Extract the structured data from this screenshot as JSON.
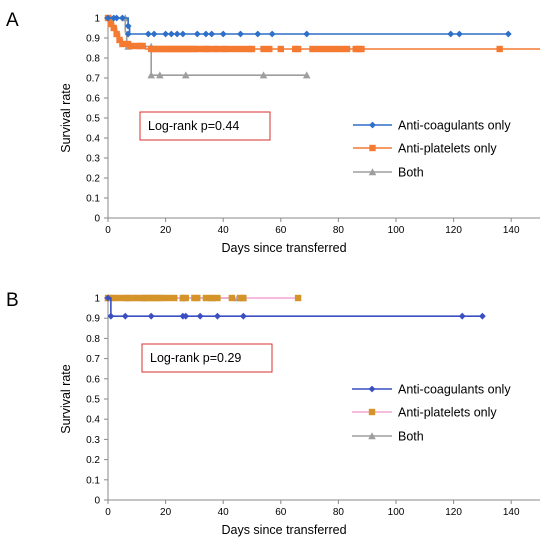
{
  "chart_data": [
    {
      "panel": "A",
      "type": "line",
      "xlabel": "Days since transferred",
      "ylabel": "Survival rate",
      "xlim": [
        0,
        150
      ],
      "ylim": [
        0,
        1
      ],
      "xticks": [
        "0",
        "20",
        "40",
        "60",
        "80",
        "100",
        "120",
        "140"
      ],
      "yticks": [
        "0",
        "0.1",
        "0.2",
        "0.3",
        "0.4",
        "0.5",
        "0.6",
        "0.7",
        "0.8",
        "0.9",
        "1"
      ],
      "annotation": "Log-rank p=0.44",
      "legend_position": "right",
      "series": [
        {
          "name": "Anti-coagulants only",
          "color": "#2e6fc9",
          "marker": "diamond",
          "step": [
            [
              0,
              1
            ],
            [
              7,
              0.96
            ],
            [
              7.5,
              0.92
            ],
            [
              139,
              0.92
            ]
          ],
          "markers": [
            [
              0,
              1
            ],
            [
              2,
              1
            ],
            [
              3,
              1
            ],
            [
              5,
              1
            ],
            [
              7,
              0.96
            ],
            [
              7,
              0.92
            ],
            [
              14,
              0.92
            ],
            [
              16,
              0.92
            ],
            [
              20,
              0.92
            ],
            [
              22,
              0.92
            ],
            [
              24,
              0.92
            ],
            [
              26,
              0.92
            ],
            [
              31,
              0.92
            ],
            [
              34,
              0.92
            ],
            [
              36,
              0.92
            ],
            [
              40,
              0.92
            ],
            [
              46,
              0.92
            ],
            [
              52,
              0.92
            ],
            [
              57,
              0.92
            ],
            [
              69,
              0.92
            ],
            [
              119,
              0.92
            ],
            [
              122,
              0.92
            ],
            [
              139,
              0.92
            ]
          ]
        },
        {
          "name": "Anti-platelets only",
          "color": "#f47a32",
          "marker": "square",
          "step": [
            [
              0,
              1
            ],
            [
              1,
              0.97
            ],
            [
              2,
              0.95
            ],
            [
              3,
              0.92
            ],
            [
              4,
              0.89
            ],
            [
              5,
              0.87
            ],
            [
              8,
              0.86
            ],
            [
              13,
              0.845
            ],
            [
              150,
              0.845
            ]
          ],
          "markers": [
            [
              0,
              1
            ],
            [
              1,
              0.97
            ],
            [
              2,
              0.95
            ],
            [
              3,
              0.92
            ],
            [
              4,
              0.89
            ],
            [
              5,
              0.87
            ],
            [
              7,
              0.87
            ],
            [
              8,
              0.86
            ],
            [
              10,
              0.86
            ],
            [
              11,
              0.86
            ],
            [
              12,
              0.86
            ],
            [
              15,
              0.845
            ],
            [
              16,
              0.845
            ],
            [
              17,
              0.845
            ],
            [
              18,
              0.845
            ],
            [
              19,
              0.845
            ],
            [
              20,
              0.845
            ],
            [
              21,
              0.845
            ],
            [
              22,
              0.845
            ],
            [
              23,
              0.845
            ],
            [
              24,
              0.845
            ],
            [
              25,
              0.845
            ],
            [
              26,
              0.845
            ],
            [
              27,
              0.845
            ],
            [
              28,
              0.845
            ],
            [
              29,
              0.845
            ],
            [
              30,
              0.845
            ],
            [
              31,
              0.845
            ],
            [
              33,
              0.845
            ],
            [
              34,
              0.845
            ],
            [
              35,
              0.845
            ],
            [
              37,
              0.845
            ],
            [
              38,
              0.845
            ],
            [
              40,
              0.845
            ],
            [
              41,
              0.845
            ],
            [
              43,
              0.845
            ],
            [
              45,
              0.845
            ],
            [
              47,
              0.845
            ],
            [
              49,
              0.845
            ],
            [
              50,
              0.845
            ],
            [
              54,
              0.845
            ],
            [
              56,
              0.845
            ],
            [
              60,
              0.845
            ],
            [
              65,
              0.845
            ],
            [
              66,
              0.845
            ],
            [
              71,
              0.845
            ],
            [
              73,
              0.845
            ],
            [
              75,
              0.845
            ],
            [
              77,
              0.845
            ],
            [
              79,
              0.845
            ],
            [
              81,
              0.845
            ],
            [
              83,
              0.845
            ],
            [
              86,
              0.845
            ],
            [
              87,
              0.845
            ],
            [
              88,
              0.845
            ],
            [
              136,
              0.845
            ]
          ]
        },
        {
          "name": "Both",
          "color": "#9e9e9e",
          "marker": "triangle",
          "step": [
            [
              0,
              1
            ],
            [
              6,
              0.93
            ],
            [
              6.5,
              0.857
            ],
            [
              15,
              0.714
            ],
            [
              69,
              0.714
            ]
          ],
          "markers": [
            [
              1,
              1
            ],
            [
              6,
              1
            ],
            [
              7,
              0.857
            ],
            [
              15,
              0.857
            ],
            [
              15,
              0.714
            ],
            [
              18,
              0.714
            ],
            [
              27,
              0.714
            ],
            [
              54,
              0.714
            ],
            [
              69,
              0.714
            ]
          ]
        }
      ]
    },
    {
      "panel": "B",
      "type": "line",
      "xlabel": "Days since transferred",
      "ylabel": "Survival rate",
      "xlim": [
        0,
        150
      ],
      "ylim": [
        0,
        1
      ],
      "xticks": [
        "0",
        "20",
        "40",
        "60",
        "80",
        "100",
        "120",
        "140"
      ],
      "yticks": [
        "0",
        "0.1",
        "0.2",
        "0.3",
        "0.4",
        "0.5",
        "0.6",
        "0.7",
        "0.8",
        "0.9",
        "1"
      ],
      "annotation": "Log-rank p=0.29",
      "legend_position": "right",
      "series": [
        {
          "name": "Anti-coagulants only",
          "color": "#3a4fc2",
          "marker": "diamond",
          "step": [
            [
              0,
              1
            ],
            [
              1,
              0.91
            ],
            [
              130,
              0.91
            ]
          ],
          "markers": [
            [
              0,
              1
            ],
            [
              1,
              0.91
            ],
            [
              6,
              0.91
            ],
            [
              15,
              0.91
            ],
            [
              26,
              0.91
            ],
            [
              27,
              0.91
            ],
            [
              32,
              0.91
            ],
            [
              38,
              0.91
            ],
            [
              47,
              0.91
            ],
            [
              123,
              0.91
            ],
            [
              130,
              0.91
            ]
          ]
        },
        {
          "name": "Anti-platelets only",
          "color": "#d4942a",
          "marker": "square",
          "line_color": "#f2a6d6",
          "step": [
            [
              0,
              1
            ],
            [
              66,
              1
            ]
          ],
          "markers": [
            [
              0,
              1
            ],
            [
              1,
              1
            ],
            [
              2,
              1
            ],
            [
              4,
              1
            ],
            [
              6,
              1
            ],
            [
              7,
              1
            ],
            [
              9,
              1
            ],
            [
              10,
              1
            ],
            [
              12,
              1
            ],
            [
              13,
              1
            ],
            [
              14,
              1
            ],
            [
              15,
              1
            ],
            [
              16,
              1
            ],
            [
              17,
              1
            ],
            [
              18,
              1
            ],
            [
              19,
              1
            ],
            [
              21,
              1
            ],
            [
              23,
              1
            ],
            [
              26,
              1
            ],
            [
              27,
              1
            ],
            [
              30,
              1
            ],
            [
              31,
              1
            ],
            [
              34,
              1
            ],
            [
              36,
              1
            ],
            [
              38,
              1
            ],
            [
              43,
              1
            ],
            [
              46,
              1
            ],
            [
              47,
              1
            ],
            [
              66,
              1
            ]
          ]
        },
        {
          "name": "Both",
          "color": "#9e9e9e",
          "marker": "triangle",
          "step": [
            [
              0,
              1
            ],
            [
              47,
              1
            ]
          ],
          "markers": [
            [
              0,
              1
            ],
            [
              7,
              1
            ],
            [
              12,
              1
            ],
            [
              26,
              1
            ],
            [
              36,
              1
            ],
            [
              45,
              1
            ],
            [
              47,
              1
            ]
          ]
        }
      ]
    }
  ]
}
